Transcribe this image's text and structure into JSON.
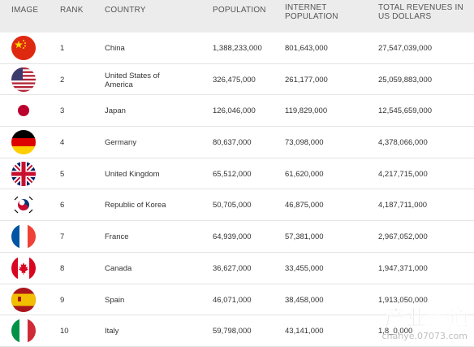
{
  "headers": {
    "image": "IMAGE",
    "rank": "RANK",
    "country": "COUNTRY",
    "population": "POPULATION",
    "internet": "INTERNET POPULATION",
    "revenue": "TOTAL REVENUES IN US DOLLARS"
  },
  "rows": [
    {
      "rank": "1",
      "country": "China",
      "population": "1,388,233,000",
      "internet": "801,643,000",
      "revenue": "27,547,039,000",
      "flag": "china-flag-icon"
    },
    {
      "rank": "2",
      "country": "United States of America",
      "population": "326,475,000",
      "internet": "261,177,000",
      "revenue": "25,059,883,000",
      "flag": "usa-flag-icon"
    },
    {
      "rank": "3",
      "country": "Japan",
      "population": "126,046,000",
      "internet": "119,829,000",
      "revenue": "12,545,659,000",
      "flag": "japan-flag-icon"
    },
    {
      "rank": "4",
      "country": "Germany",
      "population": "80,637,000",
      "internet": "73,098,000",
      "revenue": "4,378,066,000",
      "flag": "germany-flag-icon"
    },
    {
      "rank": "5",
      "country": "United Kingdom",
      "population": "65,512,000",
      "internet": "61,620,000",
      "revenue": "4,217,715,000",
      "flag": "uk-flag-icon"
    },
    {
      "rank": "6",
      "country": "Republic of Korea",
      "population": "50,705,000",
      "internet": "46,875,000",
      "revenue": "4,187,711,000",
      "flag": "korea-flag-icon"
    },
    {
      "rank": "7",
      "country": "France",
      "population": "64,939,000",
      "internet": "57,381,000",
      "revenue": "2,967,052,000",
      "flag": "france-flag-icon"
    },
    {
      "rank": "8",
      "country": "Canada",
      "population": "36,627,000",
      "internet": "33,455,000",
      "revenue": "1,947,371,000",
      "flag": "canada-flag-icon"
    },
    {
      "rank": "9",
      "country": "Spain",
      "population": "46,071,000",
      "internet": "38,458,000",
      "revenue": "1,913,050,000",
      "flag": "spain-flag-icon"
    },
    {
      "rank": "10",
      "country": "Italy",
      "population": "59,798,000",
      "internet": "43,141,000",
      "revenue": "1,8_0,000",
      "flag": "italy-flag-icon"
    }
  ],
  "watermark": {
    "title": "产业频道",
    "sub": "chanye.07073.com"
  }
}
